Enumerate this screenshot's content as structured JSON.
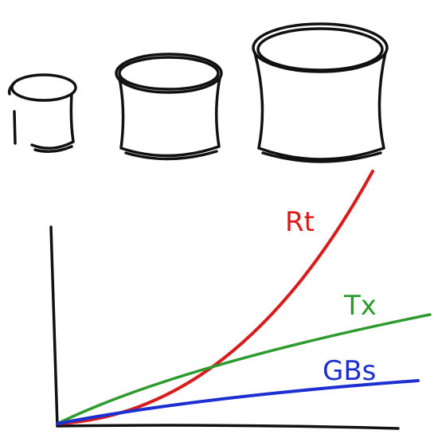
{
  "curves": [
    {
      "label": "Rt"
    },
    {
      "label": "Tx"
    },
    {
      "label": "GBs"
    }
  ]
}
